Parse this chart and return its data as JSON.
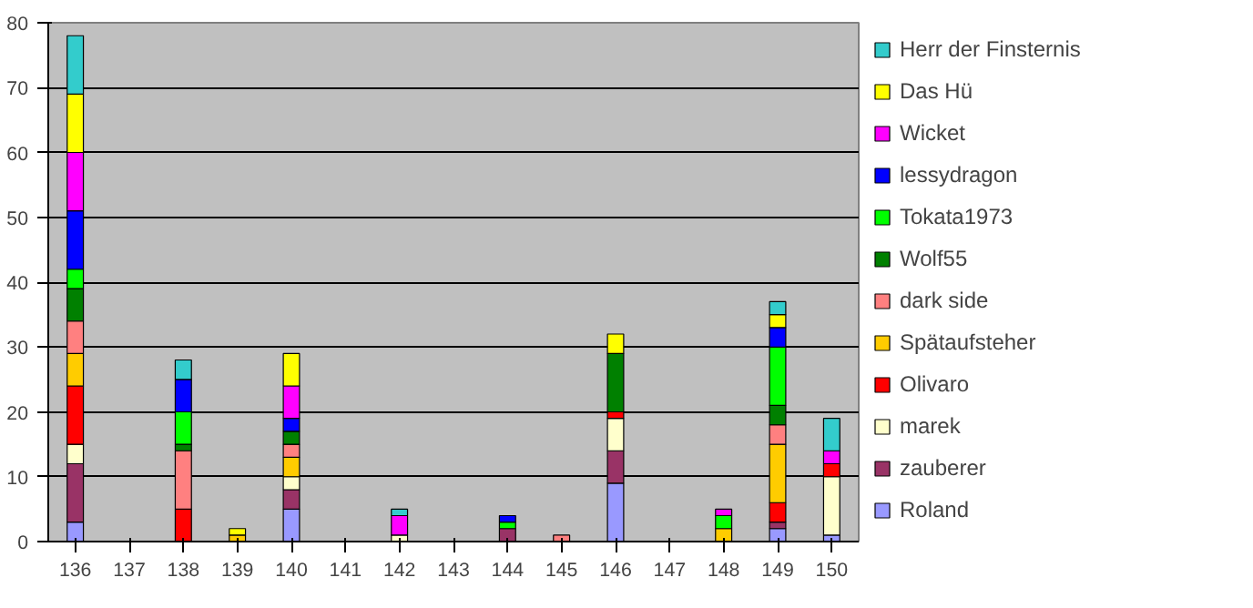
{
  "chart_data": {
    "type": "bar",
    "stacked": true,
    "categories": [
      "136",
      "137",
      "138",
      "139",
      "140",
      "141",
      "142",
      "143",
      "144",
      "145",
      "146",
      "147",
      "148",
      "149",
      "150"
    ],
    "ylim": [
      0,
      80
    ],
    "yticks": [
      0,
      10,
      20,
      30,
      40,
      50,
      60,
      70,
      80
    ],
    "grid": "y",
    "legend": "right",
    "series": [
      {
        "name": "Roland",
        "color": "#9999ff",
        "values": [
          3,
          null,
          null,
          null,
          5,
          null,
          null,
          null,
          null,
          null,
          9,
          null,
          null,
          2,
          1
        ]
      },
      {
        "name": "zauberer",
        "color": "#993366",
        "values": [
          9,
          null,
          null,
          null,
          3,
          null,
          null,
          null,
          2,
          null,
          5,
          null,
          null,
          1,
          null
        ]
      },
      {
        "name": "marek",
        "color": "#ffffcc",
        "values": [
          3,
          null,
          null,
          null,
          2,
          null,
          1,
          null,
          null,
          null,
          5,
          null,
          null,
          null,
          9
        ]
      },
      {
        "name": "Olivaro",
        "color": "#ff0000",
        "values": [
          9,
          null,
          5,
          null,
          null,
          null,
          null,
          null,
          null,
          null,
          1,
          null,
          null,
          3,
          2
        ]
      },
      {
        "name": "Spätaufsteher",
        "color": "#ffcc00",
        "values": [
          5,
          null,
          null,
          1,
          3,
          null,
          null,
          null,
          null,
          null,
          null,
          null,
          2,
          9,
          null
        ]
      },
      {
        "name": "dark side",
        "color": "#ff8080",
        "values": [
          5,
          null,
          9,
          null,
          2,
          null,
          null,
          null,
          null,
          1,
          null,
          null,
          null,
          3,
          null
        ]
      },
      {
        "name": "Wolf55",
        "color": "#008000",
        "values": [
          5,
          null,
          1,
          null,
          2,
          null,
          null,
          null,
          null,
          null,
          9,
          null,
          null,
          3,
          null
        ]
      },
      {
        "name": "Tokata1973",
        "color": "#00ff00",
        "values": [
          3,
          null,
          5,
          null,
          null,
          null,
          null,
          null,
          1,
          null,
          null,
          null,
          2,
          9,
          null
        ]
      },
      {
        "name": "lessydragon",
        "color": "#0000ff",
        "values": [
          9,
          null,
          5,
          null,
          2,
          null,
          null,
          null,
          1,
          null,
          null,
          null,
          null,
          3,
          null
        ]
      },
      {
        "name": "Wicket",
        "color": "#ff00ff",
        "values": [
          9,
          null,
          null,
          null,
          5,
          null,
          3,
          null,
          null,
          null,
          null,
          null,
          1,
          null,
          2
        ]
      },
      {
        "name": "Das Hü",
        "color": "#ffff00",
        "values": [
          9,
          null,
          null,
          1,
          5,
          null,
          null,
          null,
          null,
          null,
          3,
          null,
          null,
          2,
          null
        ]
      },
      {
        "name": "Herr der Finsternis",
        "color": "#33cccc",
        "values": [
          9,
          null,
          3,
          null,
          null,
          null,
          1,
          null,
          null,
          null,
          null,
          null,
          null,
          2,
          5
        ]
      }
    ]
  }
}
